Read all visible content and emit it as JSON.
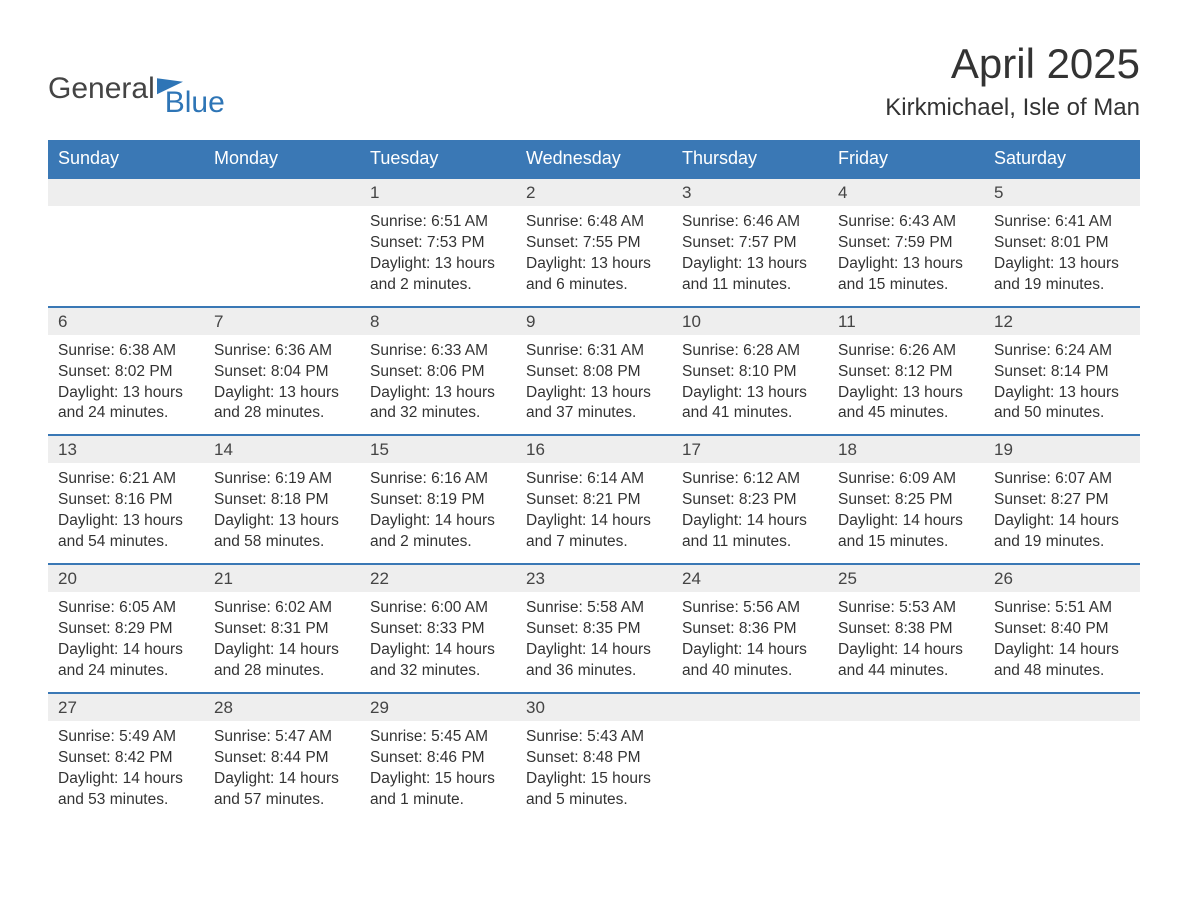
{
  "brand": {
    "word1": "General",
    "word2": "Blue"
  },
  "title": "April 2025",
  "location": "Kirkmichael, Isle of Man",
  "colors": {
    "header_bg": "#3a78b5",
    "header_text": "#ffffff",
    "daynum_bg": "#eeeeee",
    "row_border": "#3a78b5",
    "body_text": "#333333",
    "brand_accent": "#2e75b6"
  },
  "day_names": [
    "Sunday",
    "Monday",
    "Tuesday",
    "Wednesday",
    "Thursday",
    "Friday",
    "Saturday"
  ],
  "weeks": [
    [
      null,
      null,
      {
        "n": "1",
        "sunrise": "6:51 AM",
        "sunset": "7:53 PM",
        "daylight": "13 hours and 2 minutes."
      },
      {
        "n": "2",
        "sunrise": "6:48 AM",
        "sunset": "7:55 PM",
        "daylight": "13 hours and 6 minutes."
      },
      {
        "n": "3",
        "sunrise": "6:46 AM",
        "sunset": "7:57 PM",
        "daylight": "13 hours and 11 minutes."
      },
      {
        "n": "4",
        "sunrise": "6:43 AM",
        "sunset": "7:59 PM",
        "daylight": "13 hours and 15 minutes."
      },
      {
        "n": "5",
        "sunrise": "6:41 AM",
        "sunset": "8:01 PM",
        "daylight": "13 hours and 19 minutes."
      }
    ],
    [
      {
        "n": "6",
        "sunrise": "6:38 AM",
        "sunset": "8:02 PM",
        "daylight": "13 hours and 24 minutes."
      },
      {
        "n": "7",
        "sunrise": "6:36 AM",
        "sunset": "8:04 PM",
        "daylight": "13 hours and 28 minutes."
      },
      {
        "n": "8",
        "sunrise": "6:33 AM",
        "sunset": "8:06 PM",
        "daylight": "13 hours and 32 minutes."
      },
      {
        "n": "9",
        "sunrise": "6:31 AM",
        "sunset": "8:08 PM",
        "daylight": "13 hours and 37 minutes."
      },
      {
        "n": "10",
        "sunrise": "6:28 AM",
        "sunset": "8:10 PM",
        "daylight": "13 hours and 41 minutes."
      },
      {
        "n": "11",
        "sunrise": "6:26 AM",
        "sunset": "8:12 PM",
        "daylight": "13 hours and 45 minutes."
      },
      {
        "n": "12",
        "sunrise": "6:24 AM",
        "sunset": "8:14 PM",
        "daylight": "13 hours and 50 minutes."
      }
    ],
    [
      {
        "n": "13",
        "sunrise": "6:21 AM",
        "sunset": "8:16 PM",
        "daylight": "13 hours and 54 minutes."
      },
      {
        "n": "14",
        "sunrise": "6:19 AM",
        "sunset": "8:18 PM",
        "daylight": "13 hours and 58 minutes."
      },
      {
        "n": "15",
        "sunrise": "6:16 AM",
        "sunset": "8:19 PM",
        "daylight": "14 hours and 2 minutes."
      },
      {
        "n": "16",
        "sunrise": "6:14 AM",
        "sunset": "8:21 PM",
        "daylight": "14 hours and 7 minutes."
      },
      {
        "n": "17",
        "sunrise": "6:12 AM",
        "sunset": "8:23 PM",
        "daylight": "14 hours and 11 minutes."
      },
      {
        "n": "18",
        "sunrise": "6:09 AM",
        "sunset": "8:25 PM",
        "daylight": "14 hours and 15 minutes."
      },
      {
        "n": "19",
        "sunrise": "6:07 AM",
        "sunset": "8:27 PM",
        "daylight": "14 hours and 19 minutes."
      }
    ],
    [
      {
        "n": "20",
        "sunrise": "6:05 AM",
        "sunset": "8:29 PM",
        "daylight": "14 hours and 24 minutes."
      },
      {
        "n": "21",
        "sunrise": "6:02 AM",
        "sunset": "8:31 PM",
        "daylight": "14 hours and 28 minutes."
      },
      {
        "n": "22",
        "sunrise": "6:00 AM",
        "sunset": "8:33 PM",
        "daylight": "14 hours and 32 minutes."
      },
      {
        "n": "23",
        "sunrise": "5:58 AM",
        "sunset": "8:35 PM",
        "daylight": "14 hours and 36 minutes."
      },
      {
        "n": "24",
        "sunrise": "5:56 AM",
        "sunset": "8:36 PM",
        "daylight": "14 hours and 40 minutes."
      },
      {
        "n": "25",
        "sunrise": "5:53 AM",
        "sunset": "8:38 PM",
        "daylight": "14 hours and 44 minutes."
      },
      {
        "n": "26",
        "sunrise": "5:51 AM",
        "sunset": "8:40 PM",
        "daylight": "14 hours and 48 minutes."
      }
    ],
    [
      {
        "n": "27",
        "sunrise": "5:49 AM",
        "sunset": "8:42 PM",
        "daylight": "14 hours and 53 minutes."
      },
      {
        "n": "28",
        "sunrise": "5:47 AM",
        "sunset": "8:44 PM",
        "daylight": "14 hours and 57 minutes."
      },
      {
        "n": "29",
        "sunrise": "5:45 AM",
        "sunset": "8:46 PM",
        "daylight": "15 hours and 1 minute."
      },
      {
        "n": "30",
        "sunrise": "5:43 AM",
        "sunset": "8:48 PM",
        "daylight": "15 hours and 5 minutes."
      },
      null,
      null,
      null
    ]
  ],
  "labels": {
    "sunrise": "Sunrise: ",
    "sunset": "Sunset: ",
    "daylight": "Daylight: "
  }
}
